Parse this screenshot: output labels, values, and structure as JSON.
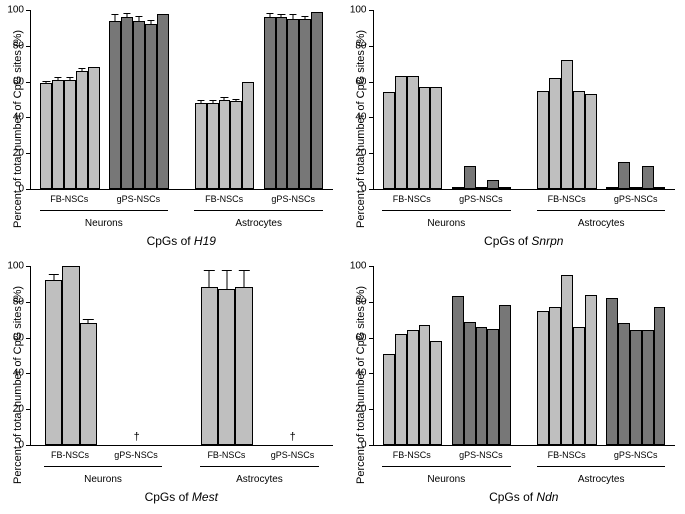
{
  "layout": {
    "cols": 2,
    "rows": 2,
    "background_color": "#ffffff"
  },
  "colors": {
    "light_bar": "#bfbfbf",
    "dark_bar": "#777777",
    "axis": "#000000"
  },
  "ylabel": "Percent of total number\nof CpG sites (%)",
  "panels": [
    {
      "id": "h19",
      "xlabel_prefix": "CpGs of ",
      "xlabel_gene": "H19",
      "ylim": [
        0,
        100
      ],
      "ytick_step": 20,
      "groups": [
        {
          "sub": "Neurons",
          "sets": [
            {
              "name": "FB-NSCs",
              "color": "light",
              "bars": [
                {
                  "v": 59,
                  "e": 1
                },
                {
                  "v": 61,
                  "e": 1
                },
                {
                  "v": 61,
                  "e": 1
                },
                {
                  "v": 66,
                  "e": 1
                },
                {
                  "v": 68,
                  "e": 0
                }
              ]
            },
            {
              "name": "gPS-NSCs",
              "color": "dark",
              "bars": [
                {
                  "v": 94,
                  "e": 3
                },
                {
                  "v": 96,
                  "e": 2
                },
                {
                  "v": 94,
                  "e": 2
                },
                {
                  "v": 92,
                  "e": 2
                },
                {
                  "v": 98,
                  "e": 0
                }
              ]
            }
          ]
        },
        {
          "sub": "Astrocytes",
          "sets": [
            {
              "name": "FB-NSCs",
              "color": "light",
              "bars": [
                {
                  "v": 48,
                  "e": 1
                },
                {
                  "v": 48,
                  "e": 1
                },
                {
                  "v": 50,
                  "e": 1
                },
                {
                  "v": 49,
                  "e": 1
                },
                {
                  "v": 60,
                  "e": 0
                }
              ]
            },
            {
              "name": "gPS-NSCs",
              "color": "dark",
              "bars": [
                {
                  "v": 96,
                  "e": 2
                },
                {
                  "v": 96,
                  "e": 1
                },
                {
                  "v": 95,
                  "e": 2
                },
                {
                  "v": 95,
                  "e": 1
                },
                {
                  "v": 99,
                  "e": 0
                }
              ]
            }
          ]
        }
      ]
    },
    {
      "id": "snrpn",
      "xlabel_prefix": "CpGs of ",
      "xlabel_gene": "Snrpn",
      "ylim": [
        0,
        100
      ],
      "ytick_step": 20,
      "groups": [
        {
          "sub": "Neurons",
          "sets": [
            {
              "name": "FB-NSCs",
              "color": "light",
              "bars": [
                {
                  "v": 54,
                  "e": 0
                },
                {
                  "v": 63,
                  "e": 0
                },
                {
                  "v": 63,
                  "e": 0
                },
                {
                  "v": 57,
                  "e": 0
                },
                {
                  "v": 57,
                  "e": 0
                }
              ]
            },
            {
              "name": "gPS-NSCs",
              "color": "dark",
              "bars": [
                {
                  "v": 0,
                  "e": 0
                },
                {
                  "v": 13,
                  "e": 0
                },
                {
                  "v": 0,
                  "e": 0
                },
                {
                  "v": 5,
                  "e": 0
                },
                {
                  "v": 0,
                  "e": 0
                }
              ]
            }
          ]
        },
        {
          "sub": "Astrocytes",
          "sets": [
            {
              "name": "FB-NSCs",
              "color": "light",
              "bars": [
                {
                  "v": 55,
                  "e": 0
                },
                {
                  "v": 62,
                  "e": 0
                },
                {
                  "v": 72,
                  "e": 0
                },
                {
                  "v": 55,
                  "e": 0
                },
                {
                  "v": 53,
                  "e": 0
                }
              ]
            },
            {
              "name": "gPS-NSCs",
              "color": "dark",
              "bars": [
                {
                  "v": 0,
                  "e": 0
                },
                {
                  "v": 15,
                  "e": 0
                },
                {
                  "v": 0,
                  "e": 0
                },
                {
                  "v": 13,
                  "e": 0
                },
                {
                  "v": 0,
                  "e": 0
                }
              ]
            }
          ]
        }
      ]
    },
    {
      "id": "mest",
      "xlabel_prefix": "CpGs of ",
      "xlabel_gene": "Mest",
      "ylim": [
        0,
        100
      ],
      "ytick_step": 20,
      "groups": [
        {
          "sub": "Neurons",
          "sets": [
            {
              "name": "FB-NSCs",
              "color": "light",
              "bars": [
                {
                  "v": 92,
                  "e": 3
                },
                {
                  "v": 100,
                  "e": 0
                },
                {
                  "v": 68,
                  "e": 2
                }
              ]
            },
            {
              "name": "gPS-NSCs",
              "color": "dark",
              "bars": [],
              "dagger": true
            }
          ]
        },
        {
          "sub": "Astrocytes",
          "sets": [
            {
              "name": "FB-NSCs",
              "color": "light",
              "bars": [
                {
                  "v": 88,
                  "e": 9
                },
                {
                  "v": 87,
                  "e": 10
                },
                {
                  "v": 88,
                  "e": 9
                }
              ]
            },
            {
              "name": "gPS-NSCs",
              "color": "dark",
              "bars": [],
              "dagger": true
            }
          ]
        }
      ]
    },
    {
      "id": "ndn",
      "xlabel_prefix": "CpGs of ",
      "xlabel_gene": "Ndn",
      "ylim": [
        0,
        100
      ],
      "ytick_step": 20,
      "groups": [
        {
          "sub": "Neurons",
          "sets": [
            {
              "name": "FB-NSCs",
              "color": "light",
              "bars": [
                {
                  "v": 51,
                  "e": 0
                },
                {
                  "v": 62,
                  "e": 0
                },
                {
                  "v": 64,
                  "e": 0
                },
                {
                  "v": 67,
                  "e": 0
                },
                {
                  "v": 58,
                  "e": 0
                }
              ]
            },
            {
              "name": "gPS-NSCs",
              "color": "dark",
              "bars": [
                {
                  "v": 83,
                  "e": 0
                },
                {
                  "v": 69,
                  "e": 0
                },
                {
                  "v": 66,
                  "e": 0
                },
                {
                  "v": 65,
                  "e": 0
                },
                {
                  "v": 78,
                  "e": 0
                }
              ]
            }
          ]
        },
        {
          "sub": "Astrocytes",
          "sets": [
            {
              "name": "FB-NSCs",
              "color": "light",
              "bars": [
                {
                  "v": 75,
                  "e": 0
                },
                {
                  "v": 77,
                  "e": 0
                },
                {
                  "v": 95,
                  "e": 0
                },
                {
                  "v": 66,
                  "e": 0
                },
                {
                  "v": 84,
                  "e": 0
                }
              ]
            },
            {
              "name": "gPS-NSCs",
              "color": "dark",
              "bars": [
                {
                  "v": 82,
                  "e": 0
                },
                {
                  "v": 68,
                  "e": 0
                },
                {
                  "v": 64,
                  "e": 0
                },
                {
                  "v": 64,
                  "e": 0
                },
                {
                  "v": 77,
                  "e": 0
                }
              ]
            }
          ]
        }
      ]
    }
  ]
}
